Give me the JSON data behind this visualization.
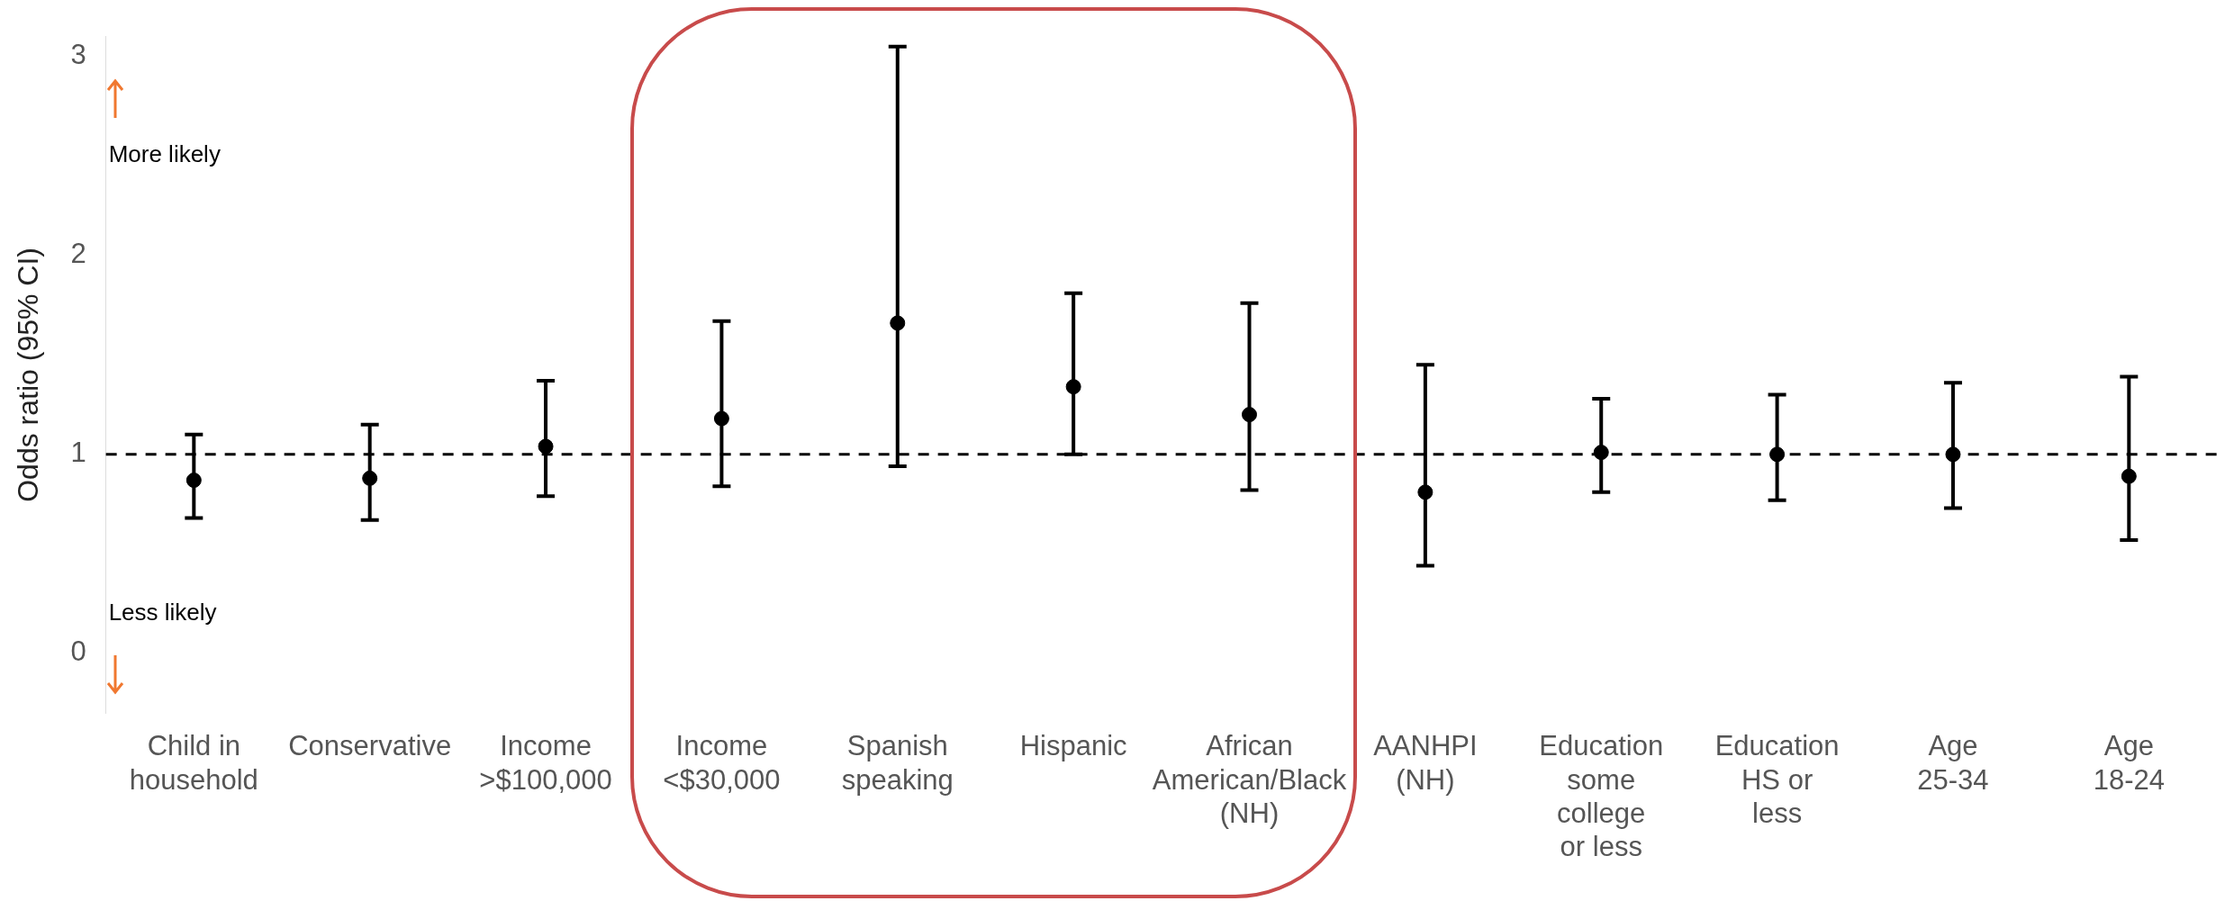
{
  "chart_data": {
    "type": "scatter",
    "ylabel": "Odds ratio (95% CI)",
    "categories": [
      "Child in household",
      "Conservative",
      "Income >$100,000",
      "Income <$30,000",
      "Spanish speaking",
      "Hispanic",
      "African American/Black (NH)",
      "AANHPI (NH)",
      "Education some college or less",
      "Education HS or less",
      "Age 25-34",
      "Age 18-24"
    ],
    "values": [
      0.87,
      0.88,
      1.04,
      1.18,
      1.66,
      1.34,
      1.2,
      0.81,
      1.01,
      1.0,
      1.0,
      0.89
    ],
    "errors": [
      [
        0.68,
        1.1
      ],
      [
        0.67,
        1.15
      ],
      [
        0.79,
        1.37
      ],
      [
        0.84,
        1.67
      ],
      [
        0.94,
        3.05
      ],
      [
        1.0,
        1.81
      ],
      [
        0.82,
        1.76
      ],
      [
        0.44,
        1.45
      ],
      [
        0.81,
        1.28
      ],
      [
        0.77,
        1.3
      ],
      [
        0.73,
        1.36
      ],
      [
        0.57,
        1.39
      ]
    ],
    "color": "#000000",
    "marker": "circle",
    "ylim": [
      -0.3,
      3.1
    ],
    "yticks": [
      0,
      1,
      2,
      3
    ],
    "grid": false,
    "legend": false,
    "ref_lines": [
      {
        "axis": "y",
        "value": 1,
        "color": "#000000",
        "line_style": "dashed"
      }
    ],
    "annotations": [
      "More likely",
      "Less likely"
    ]
  }
}
